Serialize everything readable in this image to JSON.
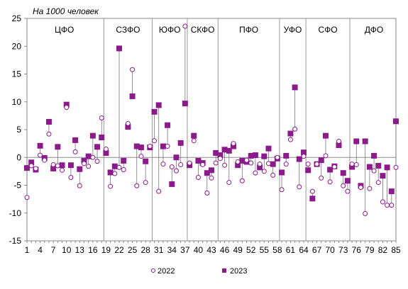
{
  "chart_data": {
    "type": "scatter",
    "unit_label": "На 1000 человек",
    "ylim": [
      -15,
      25
    ],
    "yticks": [
      -15,
      -10,
      -5,
      0,
      5,
      10,
      15,
      20,
      25
    ],
    "xlim": [
      1,
      85
    ],
    "xticks": [
      1,
      4,
      7,
      10,
      13,
      16,
      19,
      22,
      25,
      28,
      31,
      34,
      37,
      40,
      43,
      46,
      49,
      52,
      55,
      58,
      61,
      64,
      67,
      70,
      73,
      76,
      79,
      82,
      85
    ],
    "grid": false,
    "legend_position": "bottom",
    "districts": [
      {
        "label": "ЦФО",
        "start": 1,
        "end": 18
      },
      {
        "label": "СЗФО",
        "start": 19,
        "end": 29
      },
      {
        "label": "ЮФО",
        "start": 30,
        "end": 37
      },
      {
        "label": "СКФО",
        "start": 38,
        "end": 44
      },
      {
        "label": "ПФО",
        "start": 45,
        "end": 58
      },
      {
        "label": "УФО",
        "start": 59,
        "end": 64
      },
      {
        "label": "СФО",
        "start": 65,
        "end": 74
      },
      {
        "label": "ДФО",
        "start": 75,
        "end": 85
      }
    ],
    "x": [
      1,
      2,
      3,
      4,
      5,
      6,
      7,
      8,
      9,
      10,
      11,
      12,
      13,
      14,
      15,
      16,
      17,
      18,
      19,
      20,
      21,
      22,
      23,
      24,
      25,
      26,
      27,
      28,
      29,
      30,
      31,
      32,
      33,
      34,
      35,
      36,
      37,
      38,
      39,
      40,
      41,
      42,
      43,
      44,
      45,
      46,
      47,
      48,
      49,
      50,
      51,
      52,
      53,
      54,
      55,
      56,
      57,
      58,
      59,
      60,
      61,
      62,
      63,
      64,
      65,
      66,
      67,
      68,
      69,
      70,
      71,
      72,
      73,
      74,
      75,
      76,
      77,
      78,
      79,
      80,
      81,
      82,
      83,
      84,
      85
    ],
    "series": [
      {
        "name": "2022",
        "marker": "open-circle",
        "color": "#8B1A8B",
        "values": [
          -7.2,
          -1.5,
          -2.0,
          0.4,
          -0.5,
          4.2,
          -1.3,
          -1.5,
          -2.3,
          9.0,
          -3.6,
          1.0,
          -5.1,
          -1.1,
          -1.6,
          0.0,
          -0.7,
          7.1,
          1.5,
          -5.2,
          -2.9,
          -1.8,
          -2.2,
          6.1,
          15.8,
          -5.1,
          0.2,
          -4.5,
          2.0,
          3.0,
          -6.1,
          -1.2,
          2.0,
          -1.7,
          -2.4,
          -1.3,
          23.6,
          -1.0,
          3.0,
          -3.6,
          -1.3,
          -6.4,
          -3.7,
          -1.0,
          -0.2,
          -1.4,
          -4.5,
          2.5,
          -0.8,
          -4.2,
          -0.5,
          -1.0,
          -2.8,
          -1.2,
          -2.5,
          -1.1,
          -3.2,
          0.0,
          -5.8,
          -1.2,
          3.2,
          5.1,
          -5.3,
          0.2,
          -1.2,
          -6.1,
          -1.2,
          -3.7,
          0.3,
          -4.4,
          -1.7,
          2.9,
          -5.1,
          -6.1,
          -1.2,
          -1.3,
          -5.4,
          -10.1,
          -5.6,
          -2.4,
          -4.5,
          -8.0,
          -8.6,
          -8.6,
          -1.8
        ]
      },
      {
        "name": "2023",
        "marker": "filled-square",
        "color": "#8B1A8B",
        "values": [
          -1.9,
          -0.9,
          -2.2,
          2.1,
          -0.1,
          6.4,
          -2.0,
          1.9,
          -1.4,
          9.5,
          -1.4,
          3.1,
          -2.1,
          -0.6,
          0.2,
          3.9,
          1.9,
          3.6,
          0.8,
          -2.7,
          -1.6,
          19.6,
          -0.6,
          5.5,
          11.0,
          2.0,
          1.8,
          -0.7,
          1.8,
          8.2,
          9.4,
          2.0,
          5.8,
          -4.8,
          0.0,
          2.6,
          9.7,
          -1.4,
          3.9,
          -0.6,
          -1.0,
          -2.8,
          -2.3,
          0.8,
          0.4,
          1.4,
          1.2,
          2.0,
          -1.4,
          -0.6,
          -0.8,
          0.3,
          0.4,
          -1.8,
          0.2,
          1.6,
          -1.2,
          -0.2,
          -2.7,
          0.3,
          4.3,
          12.6,
          -0.3,
          0.9,
          -2.3,
          -7.4,
          -1.2,
          -0.5,
          3.9,
          -2.2,
          -1.6,
          2.2,
          -2.8,
          -4.2,
          -1.7,
          2.9,
          -5.1,
          2.9,
          -1.7,
          0.3,
          -1.5,
          -3.3,
          -1.8,
          -6.1,
          6.5
        ]
      }
    ]
  }
}
